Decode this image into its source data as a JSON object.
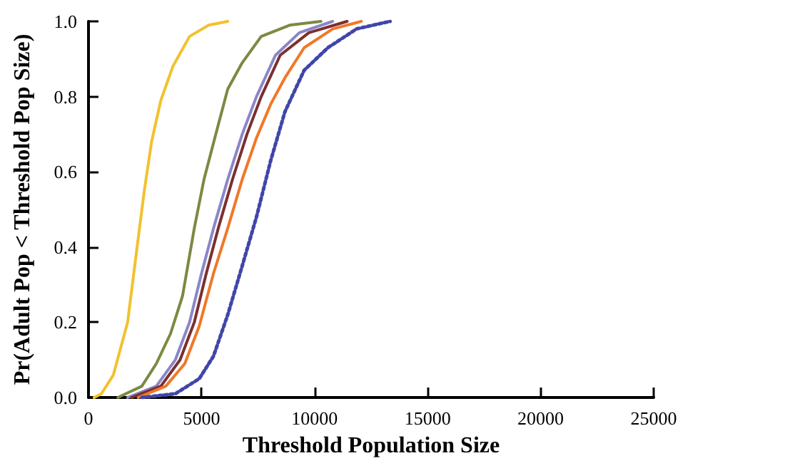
{
  "chart_data": {
    "type": "line",
    "xlabel": "Threshold Population Size",
    "ylabel": "Pr(Adult Pop < Threshold Pop Size)",
    "xlim": [
      0,
      25000
    ],
    "xticks": [
      0,
      5000,
      10000,
      15000,
      20000,
      25000
    ],
    "ylim": [
      0,
      1
    ],
    "yticks": [
      {
        "value": 0,
        "label": "0.0"
      },
      {
        "value": 0.2,
        "label": "0.2"
      },
      {
        "value": 0.4,
        "label": "0.4"
      },
      {
        "value": 0.6,
        "label": "0.6"
      },
      {
        "value": 0.8,
        "label": "0.8"
      },
      {
        "value": 1,
        "label": "1.0"
      }
    ],
    "grid": false,
    "series": [
      {
        "color": "#f2c12e",
        "line_style": "solid",
        "x": [
          250,
          570,
          1100,
          1730,
          2150,
          2470,
          2790,
          3200,
          3730,
          4470,
          5320,
          6160
        ],
        "values": [
          0,
          0.01,
          0.06,
          0.2,
          0.4,
          0.55,
          0.68,
          0.79,
          0.88,
          0.96,
          0.99,
          1
        ]
      },
      {
        "color": "#7a8a42",
        "line_style": "solid",
        "x": [
          1300,
          2360,
          3000,
          3630,
          4160,
          4680,
          5110,
          5630,
          6160,
          6800,
          7640,
          8900,
          10280
        ],
        "values": [
          0,
          0.03,
          0.09,
          0.17,
          0.27,
          0.45,
          0.58,
          0.7,
          0.82,
          0.89,
          0.96,
          0.99,
          1
        ]
      },
      {
        "color": "#8a86c8",
        "line_style": "solid",
        "x": [
          1730,
          3000,
          3840,
          4470,
          5000,
          5530,
          6160,
          6800,
          7430,
          8270,
          9330,
          10800
        ],
        "values": [
          0,
          0.03,
          0.1,
          0.2,
          0.33,
          0.45,
          0.58,
          0.7,
          0.8,
          0.91,
          0.97,
          1
        ]
      },
      {
        "color": "#7a3030",
        "line_style": "solid",
        "x": [
          1900,
          3200,
          4050,
          4680,
          5210,
          5740,
          6370,
          7010,
          7640,
          8480,
          9750,
          11440
        ],
        "values": [
          0,
          0.03,
          0.1,
          0.2,
          0.33,
          0.45,
          0.58,
          0.7,
          0.8,
          0.91,
          0.97,
          1
        ]
      },
      {
        "color": "#f07828",
        "line_style": "solid",
        "x": [
          2200,
          3420,
          4260,
          4900,
          5530,
          6160,
          6800,
          7430,
          8060,
          8690,
          9540,
          10800,
          12070
        ],
        "values": [
          0,
          0.03,
          0.09,
          0.19,
          0.33,
          0.45,
          0.58,
          0.69,
          0.78,
          0.85,
          0.93,
          0.98,
          1
        ]
      },
      {
        "color": "#4046a8",
        "line_style": "dotted",
        "x": [
          2360,
          3840,
          4900,
          5530,
          6160,
          6800,
          7430,
          8060,
          8690,
          9540,
          10590,
          11860,
          13340
        ],
        "values": [
          0,
          0.01,
          0.05,
          0.11,
          0.22,
          0.35,
          0.48,
          0.63,
          0.76,
          0.87,
          0.93,
          0.98,
          1
        ]
      }
    ]
  }
}
